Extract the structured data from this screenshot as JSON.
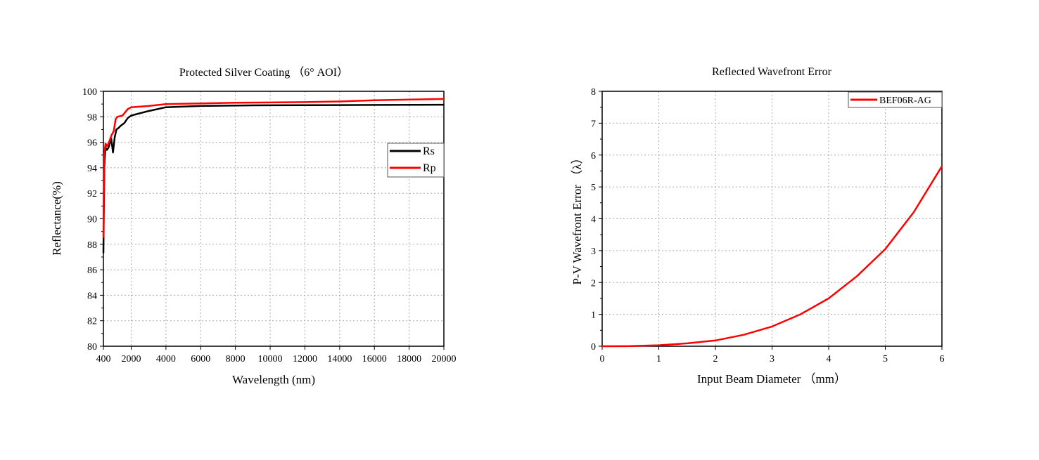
{
  "chart_data": [
    {
      "type": "line",
      "title": "Protected Silver Coating （6° AOI）",
      "xlabel": "Wavelength (nm)",
      "ylabel": "Reflectance(%)",
      "xlim": [
        400,
        20000
      ],
      "ylim": [
        80,
        100
      ],
      "xticks": [
        400,
        2000,
        4000,
        6000,
        8000,
        10000,
        12000,
        14000,
        16000,
        18000,
        20000
      ],
      "yticks": [
        80,
        82,
        84,
        86,
        88,
        90,
        92,
        94,
        96,
        98,
        100
      ],
      "grid": true,
      "legend": "right",
      "series": [
        {
          "name": "Rs",
          "color": "#000000",
          "x": [
            400,
            450,
            520,
            600,
            700,
            850,
            950,
            1050,
            1150,
            1250,
            1400,
            1600,
            1800,
            2000,
            3000,
            4000,
            5000,
            6000,
            9000,
            14000,
            20000
          ],
          "y": [
            87.3,
            94.0,
            95.6,
            95.4,
            95.6,
            96.3,
            95.2,
            96.4,
            97.0,
            97.1,
            97.3,
            97.5,
            97.9,
            98.1,
            98.45,
            98.75,
            98.8,
            98.85,
            98.9,
            98.92,
            98.95
          ]
        },
        {
          "name": "Rp",
          "color": "#ff0000",
          "x": [
            400,
            450,
            520,
            600,
            700,
            850,
            1000,
            1100,
            1200,
            1500,
            1800,
            2000,
            3000,
            4000,
            6000,
            8000,
            12000,
            14000,
            16000,
            20000
          ],
          "y": [
            88.5,
            95.0,
            95.9,
            95.7,
            95.9,
            96.5,
            96.9,
            97.8,
            98.0,
            98.1,
            98.6,
            98.75,
            98.85,
            99.0,
            99.05,
            99.1,
            99.15,
            99.2,
            99.3,
            99.4
          ]
        }
      ]
    },
    {
      "type": "line",
      "title": "Reflected Wavefront Error",
      "xlabel": "Input Beam Diameter （mm）",
      "ylabel": "P-V Wavefront Error （λ）",
      "xlim": [
        0,
        6
      ],
      "ylim": [
        0,
        8
      ],
      "xticks": [
        0,
        1,
        2,
        3,
        4,
        5,
        6
      ],
      "yticks": [
        0,
        1,
        2,
        3,
        4,
        5,
        6,
        7,
        8
      ],
      "grid": true,
      "legend": "top-right",
      "series": [
        {
          "name": "BEF06R-AG",
          "color": "#ff0000",
          "x": [
            0,
            0.5,
            1,
            1.5,
            2,
            2.5,
            3,
            3.5,
            4,
            4.5,
            5,
            5.5,
            6
          ],
          "y": [
            0,
            0.005,
            0.03,
            0.09,
            0.18,
            0.36,
            0.62,
            1.0,
            1.5,
            2.2,
            3.05,
            4.2,
            5.65
          ]
        }
      ]
    }
  ]
}
